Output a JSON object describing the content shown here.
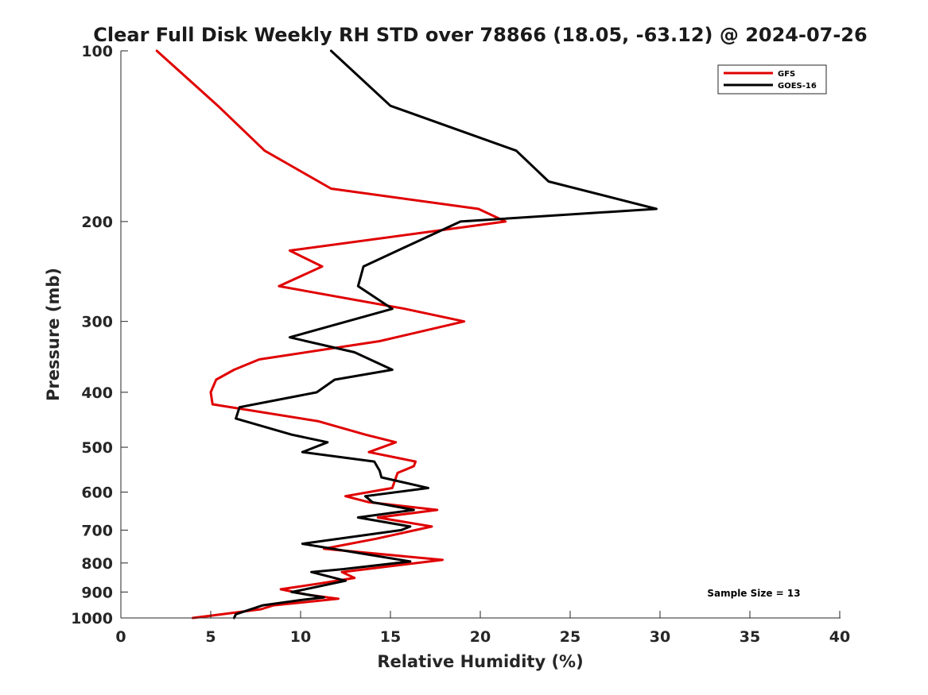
{
  "chart_data": {
    "type": "line",
    "title": "Clear Full Disk Weekly RH STD over 78866 (18.05, -63.12) @ 2024-07-26",
    "xlabel": "Relative Humidity (%)",
    "ylabel": "Pressure (mb)",
    "xlim": [
      0,
      40
    ],
    "ylim": [
      100,
      1000
    ],
    "y_scale": "log",
    "y_reversed": true,
    "x_ticks": [
      0,
      5,
      10,
      15,
      20,
      25,
      30,
      35,
      40
    ],
    "y_ticks": [
      100,
      200,
      300,
      400,
      500,
      600,
      700,
      800,
      900,
      1000
    ],
    "grid": false,
    "legend_position": "top-right",
    "annotation": "Sample Size = 13",
    "series": [
      {
        "name": "GFS",
        "color": "#e00000",
        "points": [
          [
            2.0,
            100
          ],
          [
            5.4,
            125
          ],
          [
            8.0,
            150
          ],
          [
            11.7,
            175
          ],
          [
            19.9,
            190
          ],
          [
            21.4,
            200
          ],
          [
            9.4,
            225
          ],
          [
            11.2,
            240
          ],
          [
            8.8,
            260
          ],
          [
            15.8,
            285
          ],
          [
            19.1,
            300
          ],
          [
            14.4,
            325
          ],
          [
            7.7,
            350
          ],
          [
            6.3,
            365
          ],
          [
            5.3,
            380
          ],
          [
            5.0,
            400
          ],
          [
            5.1,
            420
          ],
          [
            11.0,
            450
          ],
          [
            13.6,
            475
          ],
          [
            15.3,
            490
          ],
          [
            13.8,
            510
          ],
          [
            16.4,
            530
          ],
          [
            16.3,
            540
          ],
          [
            15.4,
            555
          ],
          [
            15.1,
            590
          ],
          [
            12.5,
            610
          ],
          [
            13.8,
            625
          ],
          [
            17.6,
            645
          ],
          [
            14.3,
            665
          ],
          [
            17.3,
            690
          ],
          [
            14.2,
            725
          ],
          [
            11.3,
            755
          ],
          [
            17.9,
            790
          ],
          [
            12.3,
            830
          ],
          [
            13.0,
            850
          ],
          [
            11.0,
            870
          ],
          [
            8.9,
            890
          ],
          [
            10.4,
            910
          ],
          [
            12.1,
            925
          ],
          [
            8.5,
            950
          ],
          [
            7.8,
            965
          ],
          [
            5.1,
            990
          ],
          [
            4.0,
            1000
          ]
        ]
      },
      {
        "name": "GOES-16",
        "color": "#000000",
        "points": [
          [
            11.7,
            100
          ],
          [
            15.0,
            125
          ],
          [
            22.0,
            150
          ],
          [
            23.8,
            170
          ],
          [
            29.8,
            190
          ],
          [
            18.9,
            200
          ],
          [
            15.4,
            225
          ],
          [
            13.5,
            240
          ],
          [
            13.2,
            260
          ],
          [
            15.1,
            285
          ],
          [
            9.4,
            320
          ],
          [
            13.0,
            340
          ],
          [
            15.1,
            365
          ],
          [
            11.9,
            380
          ],
          [
            10.9,
            400
          ],
          [
            6.6,
            425
          ],
          [
            6.4,
            445
          ],
          [
            9.5,
            475
          ],
          [
            11.5,
            490
          ],
          [
            10.1,
            510
          ],
          [
            14.1,
            530
          ],
          [
            14.4,
            550
          ],
          [
            14.5,
            565
          ],
          [
            17.1,
            590
          ],
          [
            13.6,
            610
          ],
          [
            14.0,
            625
          ],
          [
            16.3,
            645
          ],
          [
            13.2,
            665
          ],
          [
            16.1,
            690
          ],
          [
            15.6,
            700
          ],
          [
            10.1,
            740
          ],
          [
            16.1,
            795
          ],
          [
            12.4,
            820
          ],
          [
            10.6,
            830
          ],
          [
            12.5,
            860
          ],
          [
            9.9,
            895
          ],
          [
            9.5,
            900
          ],
          [
            11.3,
            920
          ],
          [
            10.0,
            930
          ],
          [
            7.9,
            950
          ],
          [
            6.4,
            985
          ],
          [
            6.3,
            1000
          ]
        ]
      }
    ]
  }
}
